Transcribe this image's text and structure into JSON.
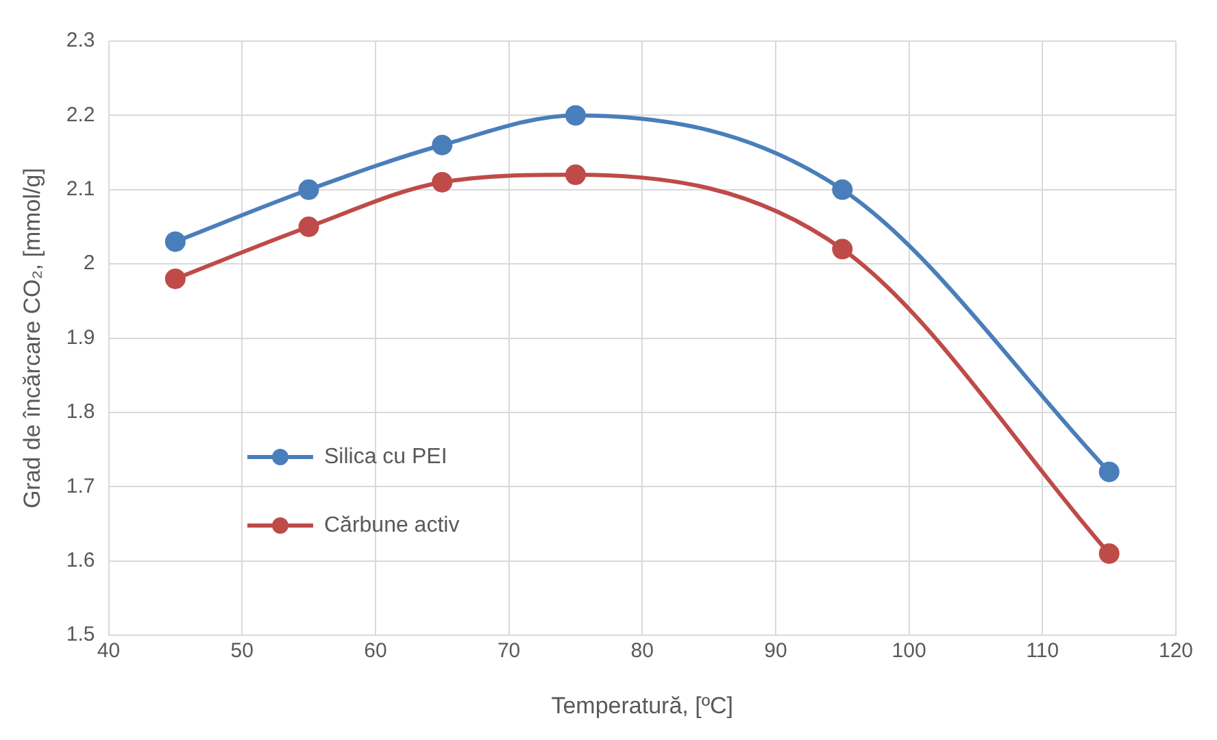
{
  "chart_data": {
    "type": "line",
    "xlabel": "Temperatură, [ºC]",
    "ylabel": "Grad de încărcare CO₂, [mmol/g]",
    "x": [
      45,
      55,
      65,
      75,
      95,
      115
    ],
    "series": [
      {
        "name": "Silica cu PEI",
        "color": "#4a7ebb",
        "values": [
          2.03,
          2.1,
          2.16,
          2.2,
          2.1,
          1.72
        ]
      },
      {
        "name": "Cărbune activ",
        "color": "#be4b48",
        "values": [
          1.98,
          2.05,
          2.11,
          2.12,
          2.02,
          1.61
        ]
      }
    ],
    "xlim": [
      40,
      120
    ],
    "xticks": [
      40,
      50,
      60,
      70,
      80,
      90,
      100,
      110,
      120
    ],
    "ylim": [
      1.5,
      2.3
    ],
    "yticks": [
      1.5,
      1.6,
      1.7,
      1.8,
      1.9,
      2,
      2.1,
      2.2,
      2.3
    ],
    "grid": true,
    "legend": "left",
    "marker": "circle",
    "line_style": "solid"
  }
}
